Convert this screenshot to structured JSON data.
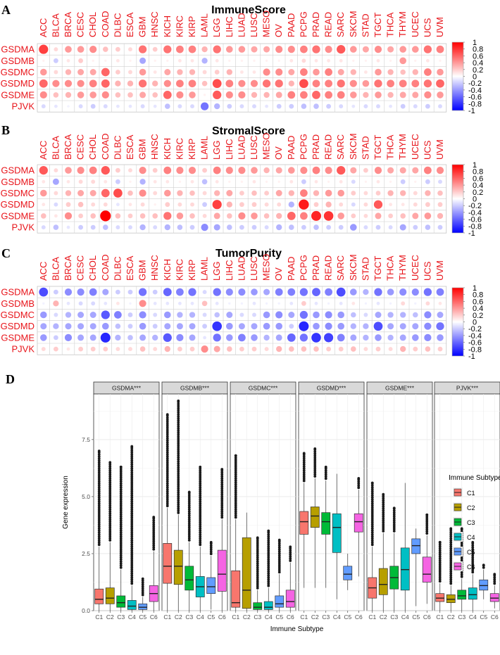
{
  "chart_data": [
    {
      "panel": "A",
      "type": "heatmap",
      "title": "ImmuneScore",
      "columns": [
        "ACC",
        "BLCA",
        "BRCA",
        "CESC",
        "CHOL",
        "COAD",
        "DLBC",
        "ESCA",
        "GBM",
        "HNSC",
        "KICH",
        "KIRC",
        "KIRP",
        "LAML",
        "LGG",
        "LIHC",
        "LUAD",
        "LUSC",
        "MESO",
        "OV",
        "PAAD",
        "PCPG",
        "PRAD",
        "READ",
        "SARC",
        "SKCM",
        "STAD",
        "TGCT",
        "THCA",
        "THYM",
        "UCEC",
        "UCS",
        "UVM"
      ],
      "rows": [
        "GSDMA",
        "GSDMB",
        "GSDMC",
        "GSDMD",
        "GSDME",
        "PJVK"
      ],
      "values": [
        [
          0.75,
          0.15,
          0.4,
          0.4,
          0.45,
          0.25,
          0.2,
          0.15,
          0.55,
          0.2,
          0.55,
          0.5,
          0.5,
          0.3,
          0.55,
          0.4,
          0.4,
          0.35,
          0.35,
          0.45,
          0.45,
          0.5,
          0.55,
          0.45,
          0.65,
          0.4,
          0.35,
          0.45,
          0.35,
          0.4,
          0.4,
          0.55,
          0.5
        ],
        [
          0.05,
          -0.2,
          0.1,
          0.2,
          0.05,
          0.05,
          0.1,
          0.05,
          -0.35,
          0.05,
          0.05,
          0.1,
          0.1,
          -0.3,
          0.1,
          0.05,
          0.05,
          0.05,
          0.05,
          0.05,
          0.1,
          0.15,
          0.1,
          0.1,
          0.1,
          0.05,
          0.05,
          0.1,
          0.05,
          0.4,
          0.05,
          0.1,
          0.05
        ],
        [
          0.4,
          0.15,
          0.3,
          0.35,
          0.35,
          0.6,
          0.2,
          0.15,
          0.4,
          0.1,
          0.35,
          0.3,
          0.3,
          0.15,
          0.2,
          0.3,
          0.1,
          0.1,
          0.45,
          0.45,
          0.35,
          0.5,
          0.4,
          0.5,
          0.35,
          0.3,
          0.1,
          0.4,
          0.3,
          0.25,
          0.3,
          0.5,
          0.4
        ],
        [
          0.6,
          0.45,
          0.45,
          0.45,
          0.5,
          0.6,
          0.3,
          0.3,
          0.55,
          0.3,
          0.45,
          0.5,
          0.5,
          0.25,
          0.7,
          0.5,
          0.45,
          0.45,
          0.55,
          0.55,
          0.3,
          0.7,
          0.5,
          0.5,
          0.55,
          0.45,
          0.4,
          0.55,
          0.5,
          0.5,
          0.5,
          0.55,
          0.6
        ],
        [
          0.45,
          0.25,
          0.3,
          0.4,
          0.4,
          0.45,
          0.25,
          0.25,
          0.35,
          0.25,
          0.6,
          0.45,
          0.4,
          0.05,
          0.65,
          0.45,
          0.45,
          0.3,
          0.3,
          0.35,
          0.5,
          0.5,
          0.6,
          0.5,
          0.5,
          0.4,
          0.3,
          0.4,
          0.3,
          0.35,
          0.35,
          0.45,
          0.4
        ],
        [
          -0.15,
          -0.1,
          -0.05,
          -0.15,
          -0.2,
          -0.15,
          -0.1,
          -0.1,
          -0.15,
          -0.1,
          -0.25,
          -0.15,
          -0.15,
          -0.55,
          -0.3,
          -0.2,
          -0.15,
          -0.15,
          -0.1,
          -0.2,
          -0.2,
          -0.25,
          -0.25,
          -0.2,
          -0.15,
          -0.1,
          -0.15,
          -0.15,
          -0.1,
          -0.2,
          -0.15,
          -0.2,
          -0.15
        ]
      ],
      "colorbar_ticks": [
        "1",
        "0.8",
        "0.6",
        "0.4",
        "0.2",
        "0",
        "-0.2",
        "-0.4",
        "-0.6",
        "-0.8",
        "-1"
      ],
      "colors": {
        "positive": "#ff0000",
        "neutral": "#ffffff",
        "negative": "#0000ff"
      }
    },
    {
      "panel": "B",
      "type": "heatmap",
      "title": "StromalScore",
      "columns": [
        "ACC",
        "BLCA",
        "BRCA",
        "CESC",
        "CHOL",
        "COAD",
        "DLBC",
        "ESCA",
        "GBM",
        "HNSC",
        "KICH",
        "KIRC",
        "KIRP",
        "LAML",
        "LGG",
        "LIHC",
        "LUAD",
        "LUSC",
        "MESO",
        "OV",
        "PAAD",
        "PCPG",
        "PRAD",
        "READ",
        "SARC",
        "SKCM",
        "STAD",
        "TGCT",
        "THCA",
        "THYM",
        "UCEC",
        "UCS",
        "UVM"
      ],
      "rows": [
        "GSDMA",
        "GSDMB",
        "GSDMC",
        "GSDMD",
        "GSDME",
        "PJVK"
      ],
      "values": [
        [
          0.65,
          0.15,
          0.4,
          0.45,
          0.5,
          0.65,
          0.2,
          0.15,
          0.45,
          0.2,
          0.5,
          0.45,
          0.45,
          0.2,
          0.5,
          0.45,
          0.45,
          0.4,
          0.3,
          0.35,
          0.4,
          0.45,
          0.5,
          0.45,
          0.65,
          0.35,
          0.2,
          0.45,
          0.35,
          0.35,
          0.35,
          0.5,
          0.45
        ],
        [
          0.1,
          -0.35,
          0.1,
          0.15,
          0.15,
          0.1,
          -0.2,
          0.05,
          -0.3,
          0.1,
          0.1,
          0.05,
          0.1,
          -0.25,
          0.1,
          0.05,
          0.05,
          0.1,
          0.05,
          0.05,
          0.1,
          -0.2,
          0.1,
          0.05,
          0.1,
          -0.15,
          0.05,
          0.1,
          0.05,
          -0.2,
          0.05,
          -0.2,
          -0.15
        ],
        [
          0.4,
          0.15,
          0.3,
          0.35,
          0.35,
          0.6,
          0.7,
          0.25,
          0.45,
          0.15,
          0.4,
          0.3,
          0.25,
          0.15,
          0.3,
          0.35,
          0.2,
          0.25,
          0.2,
          0.35,
          0.3,
          0.5,
          0.3,
          0.4,
          0.4,
          0.2,
          0.15,
          0.2,
          0.3,
          0.3,
          0.15,
          0.3,
          0.25
        ],
        [
          0.1,
          -0.15,
          0.2,
          0.25,
          0.15,
          0.15,
          -0.1,
          0.1,
          0.15,
          0.05,
          0.2,
          0.15,
          0.15,
          -0.2,
          0.75,
          0.3,
          0.2,
          0.2,
          0.15,
          0.15,
          -0.3,
          0.9,
          0.2,
          0.3,
          0.15,
          -0.15,
          0.15,
          0.65,
          0.1,
          0.1,
          0.15,
          0.2,
          0.2
        ],
        [
          0.25,
          0.1,
          0.45,
          0.2,
          0.25,
          1.0,
          0.25,
          0.2,
          0.25,
          0.25,
          0.55,
          0.4,
          0.25,
          0.15,
          0.35,
          0.25,
          0.45,
          0.4,
          0.25,
          0.3,
          0.6,
          0.5,
          0.85,
          0.8,
          0.4,
          0.2,
          0.15,
          0.35,
          0.2,
          0.25,
          0.35,
          0.4,
          0.3
        ],
        [
          -0.15,
          -0.25,
          -0.1,
          -0.2,
          -0.2,
          -0.25,
          -0.15,
          -0.15,
          -0.3,
          -0.15,
          -0.3,
          -0.25,
          -0.2,
          -0.45,
          -0.35,
          -0.25,
          -0.2,
          -0.2,
          -0.15,
          -0.3,
          -0.25,
          -0.2,
          -0.25,
          -0.2,
          -0.2,
          -0.4,
          -0.15,
          -0.2,
          -0.15,
          -0.35,
          -0.2,
          -0.25,
          -0.2
        ]
      ],
      "colorbar_ticks": [
        "1",
        "0.8",
        "0.6",
        "0.4",
        "0.2",
        "0",
        "-0.2",
        "-0.4",
        "-0.6",
        "-0.8",
        "-1"
      ],
      "colors": {
        "positive": "#ff0000",
        "neutral": "#ffffff",
        "negative": "#0000ff"
      }
    },
    {
      "panel": "C",
      "type": "heatmap",
      "title": "TumorPurity",
      "columns": [
        "ACC",
        "BLCA",
        "BRCA",
        "CESC",
        "CHOL",
        "COAD",
        "DLBC",
        "ESCA",
        "GBM",
        "HNSC",
        "KICH",
        "KIRC",
        "KIRP",
        "LAML",
        "LGG",
        "LIHC",
        "LUAD",
        "LUSC",
        "MESO",
        "OV",
        "PAAD",
        "PCPG",
        "PRAD",
        "READ",
        "SARC",
        "SKCM",
        "STAD",
        "TGCT",
        "THCA",
        "THYM",
        "UCEC",
        "UCS",
        "UVM"
      ],
      "rows": [
        "GSDMA",
        "GSDMB",
        "GSDMC",
        "GSDMD",
        "GSDME",
        "PJVK"
      ],
      "values": [
        [
          -0.7,
          -0.2,
          -0.45,
          -0.45,
          -0.5,
          -0.35,
          -0.2,
          -0.2,
          -0.55,
          -0.2,
          -0.6,
          -0.5,
          -0.55,
          -0.15,
          -0.55,
          -0.45,
          -0.45,
          -0.4,
          -0.35,
          -0.5,
          -0.5,
          -0.55,
          -0.6,
          -0.5,
          -0.7,
          -0.4,
          -0.3,
          -0.55,
          -0.4,
          -0.45,
          -0.45,
          -0.55,
          -0.5
        ],
        [
          -0.05,
          0.3,
          -0.1,
          -0.15,
          -0.15,
          -0.1,
          0.1,
          -0.05,
          0.45,
          -0.1,
          -0.1,
          -0.1,
          -0.1,
          0.25,
          -0.1,
          -0.05,
          -0.05,
          -0.1,
          -0.05,
          -0.05,
          -0.1,
          0.2,
          -0.1,
          -0.05,
          -0.1,
          0.1,
          -0.05,
          -0.1,
          -0.05,
          0.15,
          -0.05,
          0.15,
          0.1
        ],
        [
          -0.4,
          -0.15,
          -0.3,
          -0.35,
          -0.35,
          -0.65,
          -0.5,
          -0.2,
          -0.45,
          -0.15,
          -0.4,
          -0.3,
          -0.3,
          -0.15,
          -0.25,
          -0.35,
          -0.15,
          -0.15,
          -0.4,
          -0.45,
          -0.35,
          -0.55,
          -0.4,
          -0.45,
          -0.4,
          -0.25,
          -0.15,
          -0.35,
          -0.3,
          -0.3,
          -0.25,
          -0.45,
          -0.35
        ],
        [
          -0.35,
          -0.3,
          -0.35,
          -0.35,
          -0.35,
          -0.4,
          -0.25,
          -0.2,
          -0.4,
          -0.2,
          -0.35,
          -0.35,
          -0.35,
          -0.2,
          -0.8,
          -0.4,
          -0.35,
          -0.35,
          -0.4,
          -0.4,
          -0.2,
          -0.85,
          -0.4,
          -0.45,
          -0.4,
          -0.3,
          -0.3,
          -0.7,
          -0.35,
          -0.35,
          -0.35,
          -0.45,
          -0.55
        ],
        [
          -0.4,
          -0.2,
          -0.45,
          -0.35,
          -0.35,
          -0.85,
          -0.3,
          -0.25,
          -0.35,
          -0.3,
          -0.65,
          -0.45,
          -0.35,
          -0.1,
          -0.55,
          -0.4,
          -0.5,
          -0.4,
          -0.3,
          -0.35,
          -0.6,
          -0.55,
          -0.8,
          -0.75,
          -0.5,
          -0.35,
          -0.3,
          -0.4,
          -0.3,
          -0.35,
          -0.4,
          -0.45,
          -0.4
        ],
        [
          0.15,
          0.2,
          0.1,
          0.2,
          0.2,
          0.2,
          0.15,
          0.15,
          0.25,
          0.15,
          0.3,
          0.2,
          0.2,
          0.45,
          0.35,
          0.25,
          0.2,
          0.2,
          0.15,
          0.3,
          0.25,
          0.25,
          0.25,
          0.2,
          0.2,
          0.25,
          0.15,
          0.2,
          0.15,
          0.3,
          0.2,
          0.25,
          0.2
        ]
      ],
      "colorbar_ticks": [
        "1",
        "0.8",
        "0.6",
        "0.4",
        "0.2",
        "0",
        "-0.2",
        "-0.4",
        "-0.6",
        "-0.8",
        "-1"
      ],
      "colors": {
        "positive": "#ff0000",
        "neutral": "#ffffff",
        "negative": "#0000ff"
      }
    },
    {
      "panel": "D",
      "type": "box",
      "facets": [
        "GSDMA***",
        "GSDMB***",
        "GSDMC***",
        "GSDMD***",
        "GSDME***",
        "PJVK***"
      ],
      "categories": [
        "C1",
        "C2",
        "C3",
        "C4",
        "C5",
        "C6"
      ],
      "xlabel": "Immune Subtype",
      "ylabel": "Gene expression",
      "ylim": [
        0,
        9.5
      ],
      "yticks": [
        "0.0",
        "2.5",
        "5.0",
        "7.5"
      ],
      "legend": {
        "title": "Immune Subtype",
        "labels": [
          "C1",
          "C2",
          "C3",
          "C4",
          "C5",
          "C6"
        ],
        "position": "right"
      },
      "colors": [
        "#f8766d",
        "#b79f00",
        "#00ba38",
        "#00bfc4",
        "#619cff",
        "#f564e3"
      ],
      "boxes": [
        [
          [
            0.0,
            0.3,
            0.5,
            0.95,
            2.8,
            7.0
          ],
          [
            0.0,
            0.3,
            0.55,
            1.0,
            3.0,
            6.5
          ],
          [
            0.0,
            0.15,
            0.35,
            0.65,
            1.8,
            6.3
          ],
          [
            0.0,
            0.05,
            0.2,
            0.45,
            1.1,
            7.2
          ],
          [
            0.0,
            0.05,
            0.15,
            0.3,
            0.6,
            1.4
          ],
          [
            0.0,
            0.4,
            0.75,
            1.1,
            2.6,
            4.1
          ]
        ],
        [
          [
            0.0,
            1.2,
            1.95,
            2.95,
            4.5,
            8.6
          ],
          [
            0.0,
            1.15,
            1.95,
            2.65,
            4.2,
            9.2
          ],
          [
            0.0,
            0.9,
            1.35,
            1.95,
            3.0,
            5.2
          ],
          [
            0.0,
            0.6,
            1.05,
            1.5,
            2.8,
            6.3
          ],
          [
            0.05,
            0.75,
            1.05,
            1.45,
            2.4,
            3.0
          ],
          [
            0.0,
            0.85,
            1.6,
            2.65,
            4.0,
            6.2
          ]
        ],
        [
          [
            0.0,
            0.15,
            0.35,
            1.75,
            4.0,
            6.8
          ],
          [
            0.0,
            0.1,
            0.9,
            3.2,
            4.3,
            4.3
          ],
          [
            0.0,
            0.05,
            0.15,
            0.35,
            0.9,
            3.2
          ],
          [
            0.0,
            0.05,
            0.15,
            0.4,
            1.0,
            3.5
          ],
          [
            0.0,
            0.15,
            0.3,
            0.65,
            1.6,
            3.1
          ],
          [
            0.0,
            0.15,
            0.4,
            0.9,
            2.1,
            2.8
          ]
        ],
        [
          [
            1.0,
            3.35,
            3.9,
            4.35,
            5.6,
            6.9
          ],
          [
            1.0,
            3.65,
            4.15,
            4.55,
            5.8,
            7.1
          ],
          [
            1.0,
            3.35,
            3.9,
            4.3,
            5.7,
            6.3
          ],
          [
            0.5,
            2.55,
            3.65,
            4.25,
            6.0,
            6.0
          ],
          [
            0.9,
            1.35,
            1.6,
            1.95,
            2.5,
            2.5
          ],
          [
            1.5,
            3.45,
            3.9,
            4.25,
            5.3,
            5.8
          ]
        ],
        [
          [
            0.0,
            0.55,
            1.0,
            1.45,
            2.8,
            5.6
          ],
          [
            0.0,
            0.7,
            1.15,
            1.85,
            3.4,
            5.1
          ],
          [
            0.0,
            0.95,
            1.45,
            1.95,
            3.4,
            4.5
          ],
          [
            0.0,
            0.9,
            1.8,
            2.75,
            5.6,
            5.6
          ],
          [
            0.2,
            2.5,
            2.85,
            3.15,
            3.6,
            3.6
          ],
          [
            0.3,
            1.25,
            1.6,
            2.35,
            3.3,
            4.2
          ]
        ],
        [
          [
            0.0,
            0.4,
            0.55,
            0.75,
            1.2,
            3.0
          ],
          [
            0.0,
            0.35,
            0.5,
            0.7,
            1.1,
            3.6
          ],
          [
            0.0,
            0.5,
            0.65,
            0.9,
            1.4,
            3.6
          ],
          [
            0.0,
            0.5,
            0.7,
            1.0,
            1.6,
            3.0
          ],
          [
            0.5,
            0.9,
            1.1,
            1.35,
            1.8,
            2.0
          ],
          [
            0.1,
            0.4,
            0.55,
            0.75,
            1.1,
            1.6
          ]
        ]
      ]
    }
  ]
}
